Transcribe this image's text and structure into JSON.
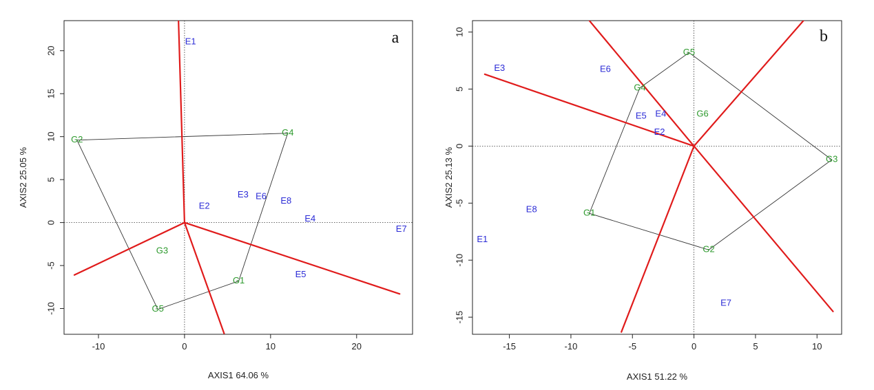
{
  "colors": {
    "genotype": "#2e9a2e",
    "environment": "#2b2bd6",
    "sector": "#e01b1b",
    "polygon": "#333333"
  },
  "chart_data": [
    {
      "type": "scatter",
      "panel_label": "a",
      "xlabel": "AXIS1 64.06 %",
      "ylabel": "AXIS2 25.05 %",
      "xlim": [
        -14,
        26.5
      ],
      "ylim": [
        -13,
        23.5
      ],
      "xticks": [
        -10,
        0,
        10,
        20
      ],
      "yticks": [
        -10,
        -5,
        0,
        5,
        10,
        15,
        20
      ],
      "grid": false,
      "genotypes": [
        {
          "label": "G1",
          "x": 6.3,
          "y": -6.8
        },
        {
          "label": "G2",
          "x": -12.5,
          "y": 9.6
        },
        {
          "label": "G3",
          "x": -2.6,
          "y": -3.3
        },
        {
          "label": "G4",
          "x": 12.0,
          "y": 10.4
        },
        {
          "label": "G5",
          "x": -3.1,
          "y": -10.1
        }
      ],
      "environments": [
        {
          "label": "E1",
          "x": 0.7,
          "y": 21.0
        },
        {
          "label": "E2",
          "x": 2.3,
          "y": 1.9
        },
        {
          "label": "E3",
          "x": 6.8,
          "y": 3.2
        },
        {
          "label": "E4",
          "x": 14.6,
          "y": 0.4
        },
        {
          "label": "E5",
          "x": 13.5,
          "y": -6.1
        },
        {
          "label": "E6",
          "x": 8.9,
          "y": 3.0
        },
        {
          "label": "E7",
          "x": 25.2,
          "y": -0.8
        },
        {
          "label": "E8",
          "x": 11.8,
          "y": 2.5
        }
      ],
      "polygon": [
        "G2",
        "G4",
        "G1",
        "G5"
      ],
      "sector_rays_end": [
        [
          -0.7,
          23.5
        ],
        [
          -12.8,
          -6.1
        ],
        [
          4.6,
          -12.9
        ],
        [
          25.0,
          -8.3
        ]
      ]
    },
    {
      "type": "scatter",
      "panel_label": "b",
      "xlabel": "AXIS1 51.22 %",
      "ylabel": "AXIS2 25.13 %",
      "xlim": [
        -18,
        12
      ],
      "ylim": [
        -16.5,
        11
      ],
      "xticks": [
        -15,
        -10,
        -5,
        0,
        5,
        10
      ],
      "yticks": [
        -15,
        -10,
        -5,
        0,
        5,
        10
      ],
      "grid": false,
      "genotypes": [
        {
          "label": "G1",
          "x": -8.5,
          "y": -5.9
        },
        {
          "label": "G2",
          "x": 1.2,
          "y": -9.1
        },
        {
          "label": "G3",
          "x": 11.2,
          "y": -1.2
        },
        {
          "label": "G4",
          "x": -4.4,
          "y": 5.1
        },
        {
          "label": "G5",
          "x": -0.4,
          "y": 8.2
        },
        {
          "label": "G6",
          "x": 0.7,
          "y": 2.8
        }
      ],
      "environments": [
        {
          "label": "E1",
          "x": -17.2,
          "y": -8.2
        },
        {
          "label": "E2",
          "x": -2.8,
          "y": 1.2
        },
        {
          "label": "E3",
          "x": -15.8,
          "y": 6.8
        },
        {
          "label": "E4",
          "x": -2.7,
          "y": 2.8
        },
        {
          "label": "E5",
          "x": -4.3,
          "y": 2.6
        },
        {
          "label": "E6",
          "x": -7.2,
          "y": 6.7
        },
        {
          "label": "E7",
          "x": 2.6,
          "y": -13.8
        },
        {
          "label": "E8",
          "x": -13.2,
          "y": -5.6
        }
      ],
      "polygon": [
        "G5",
        "G3",
        "G2",
        "G1",
        "G4"
      ],
      "sector_rays_end": [
        [
          -8.5,
          11.0
        ],
        [
          -17.0,
          6.3
        ],
        [
          -5.9,
          -16.3
        ],
        [
          11.3,
          -14.5
        ],
        [
          8.9,
          11.0
        ]
      ]
    }
  ]
}
